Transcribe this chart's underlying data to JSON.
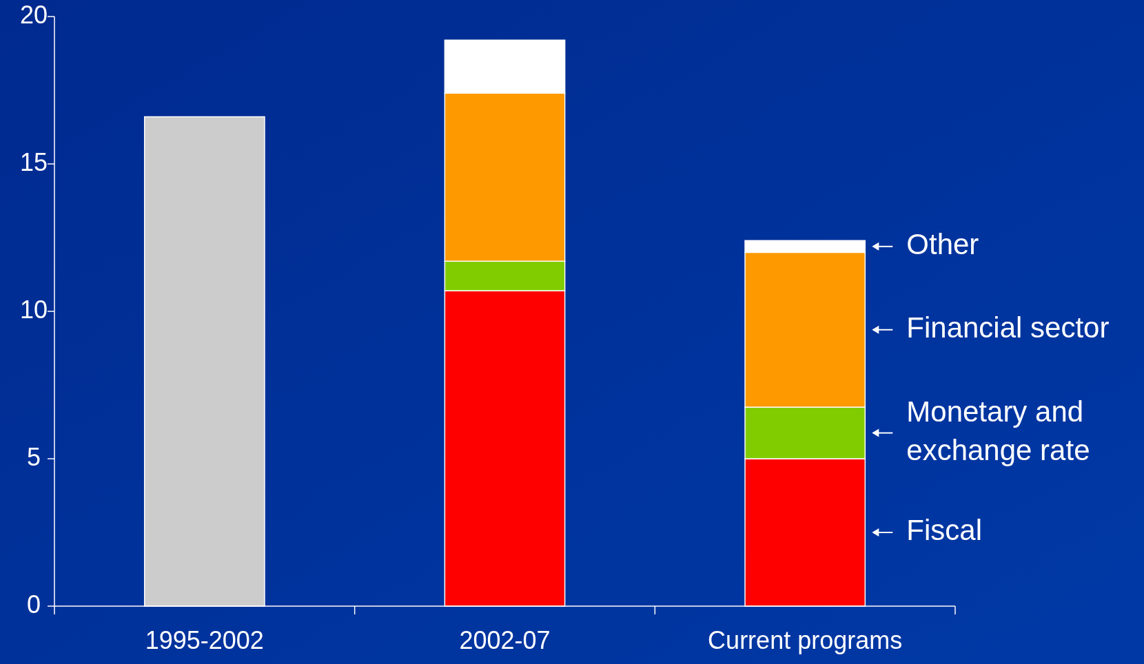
{
  "chart_data": {
    "type": "bar",
    "stacked": true,
    "categories": [
      "1995-2002",
      "2002-07",
      "Current programs"
    ],
    "series": [
      {
        "color": "#cccccc",
        "values": [
          16.6,
          null,
          null
        ]
      },
      {
        "name": "Fiscal",
        "color": "#ff0000",
        "values": [
          null,
          10.7,
          5.0
        ]
      },
      {
        "name": "Monetary and exchange rate",
        "color": "#80cc00",
        "values": [
          null,
          1.0,
          1.75
        ]
      },
      {
        "name": "Financial sector",
        "color": "#ff9900",
        "values": [
          null,
          5.7,
          5.25
        ]
      },
      {
        "name": "Other",
        "color": "#ffffff",
        "values": [
          null,
          1.8,
          0.4
        ]
      }
    ],
    "ylim": [
      0,
      20
    ],
    "yticks": [
      0,
      5,
      10,
      15,
      20
    ],
    "grid": false,
    "legend": "right"
  }
}
